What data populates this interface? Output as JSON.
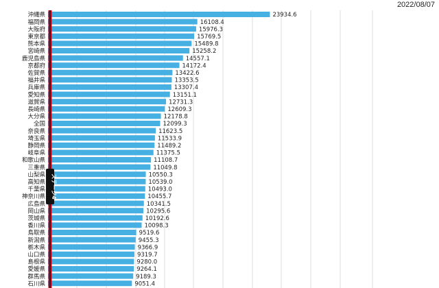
{
  "date": "2022/08/07",
  "stage_label": "ステージ4",
  "colors": {
    "bar": "#45b0e1",
    "stage_line": "#d0021b",
    "badge": "#111111"
  },
  "chart_data": {
    "type": "bar",
    "orientation": "horizontal",
    "categories": [
      "沖縄県",
      "福岡県",
      "大阪府",
      "東京都",
      "熊本県",
      "宮崎県",
      "鹿児島県",
      "京都府",
      "佐賀県",
      "福井県",
      "兵庫県",
      "愛知県",
      "滋賀県",
      "長崎県",
      "大分県",
      "全国",
      "奈良県",
      "埼玉県",
      "静岡県",
      "岐阜県",
      "和歌山県",
      "三重県",
      "山梨県",
      "高知県",
      "千葉県",
      "神奈川県",
      "広島県",
      "岡山県",
      "茨城県",
      "香川県",
      "鳥取県",
      "新潟県",
      "栃木県",
      "山口県",
      "島根県",
      "愛媛県",
      "群馬県",
      "石川県"
    ],
    "values": [
      23934.6,
      16108.4,
      15976.3,
      15769.5,
      15489.8,
      15258.2,
      14557.1,
      14172.4,
      13422.6,
      13353.5,
      13307.4,
      13151.1,
      12731.3,
      12609.3,
      12178.8,
      12099.3,
      11623.5,
      11533.9,
      11489.2,
      11375.5,
      11108.7,
      11049.8,
      10550.3,
      10539.0,
      10493.0,
      10455.7,
      10341.5,
      10295.6,
      10192.6,
      10098.3,
      9519.6,
      9455.3,
      9366.9,
      9319.7,
      9280.0,
      9264.1,
      9189.3,
      9051.4
    ],
    "value_labels": [
      "23934.6",
      "16108.4",
      "15976.3",
      "15769.5",
      "15489.8",
      "15258.2",
      "14557.1",
      "14172.4",
      "13422.6",
      "13353.5",
      "13307.4",
      "13151.1",
      "12731.3",
      "12609.3",
      "12178.8",
      "12099.3",
      "11623.5",
      "11533.9",
      "11489.2",
      "11375.5",
      "11108.7",
      "11049.8",
      "10550.3",
      "10539.0",
      "10493.0",
      "10455.7",
      "10341.5",
      "10295.6",
      "10192.6",
      "10098.3",
      "9519.6",
      "9455.3",
      "9366.9",
      "9319.7",
      "9280.0",
      "9264.1",
      "9189.3",
      "9051.4"
    ],
    "xlim": [
      0,
      35000
    ],
    "grid": true
  }
}
